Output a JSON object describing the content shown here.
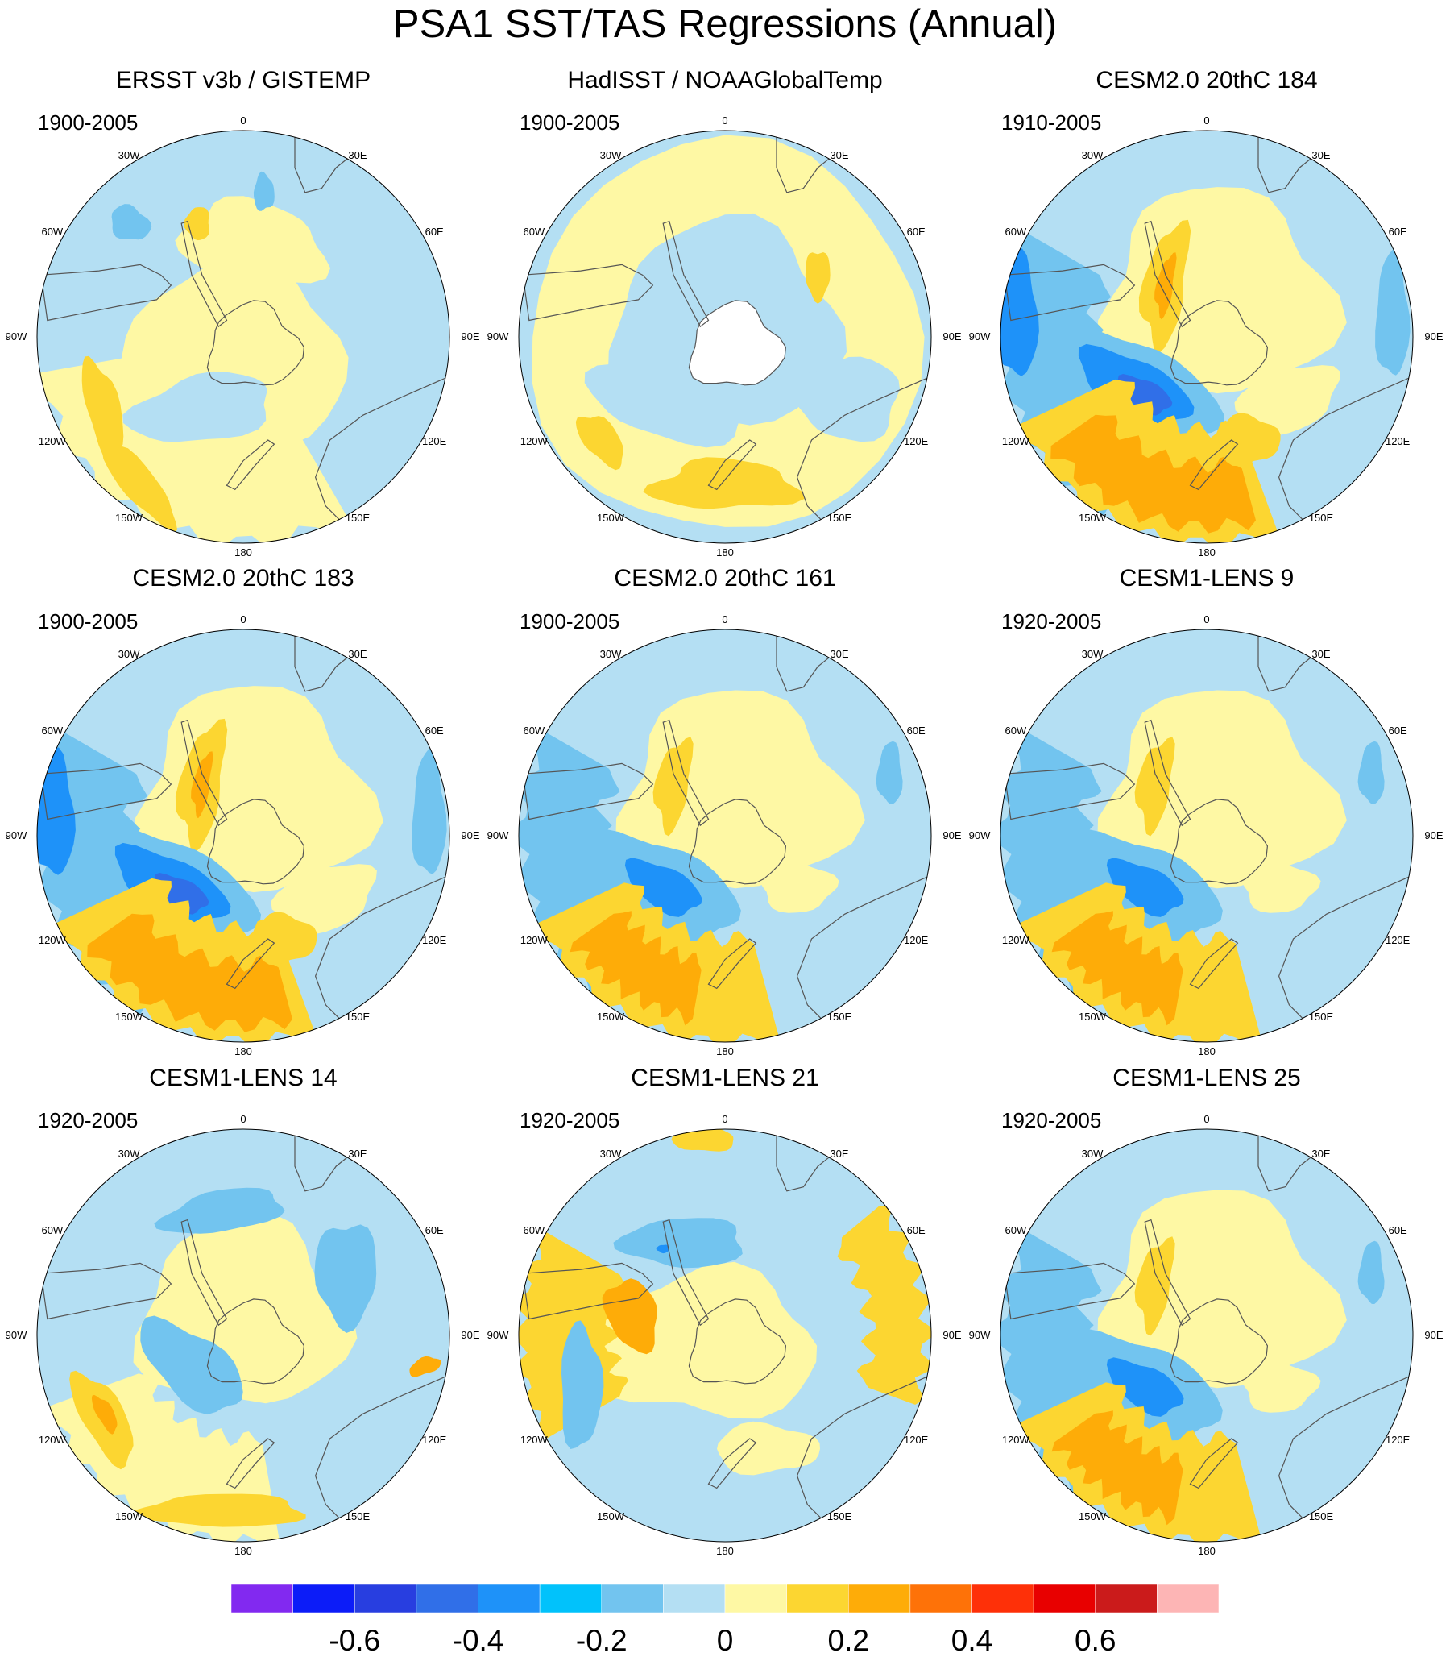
{
  "title": "PSA1 SST/TAS Regressions (Annual)",
  "lon_labels": [
    "0",
    "30E",
    "60E",
    "90E",
    "120E",
    "150E",
    "180",
    "150W",
    "120W",
    "90W",
    "60W",
    "30W"
  ],
  "panels": [
    {
      "title": "ERSST v3b / GISTEMP",
      "period": "1900-2005",
      "pattern": "weak-obs"
    },
    {
      "title": "HadISST / NOAAGlobalTemp",
      "period": "1900-2005",
      "pattern": "weak-obs-masked"
    },
    {
      "title": "CESM2.0 20thC 184",
      "period": "1910-2005",
      "pattern": "strong-dipole"
    },
    {
      "title": "CESM2.0 20thC 183",
      "period": "1900-2005",
      "pattern": "strong-dipole"
    },
    {
      "title": "CESM2.0 20thC 161",
      "period": "1900-2005",
      "pattern": "moderate-dipole"
    },
    {
      "title": "CESM1-LENS 9",
      "period": "1920-2005",
      "pattern": "moderate-dipole"
    },
    {
      "title": "CESM1-LENS 14",
      "period": "1920-2005",
      "pattern": "weak-dipole"
    },
    {
      "title": "CESM1-LENS 21",
      "period": "1920-2005",
      "pattern": "reversed-dipole"
    },
    {
      "title": "CESM1-LENS 25",
      "period": "1920-2005",
      "pattern": "moderate-dipole"
    }
  ],
  "colorbar": {
    "colors": [
      "#8229f0",
      "#0c1cf8",
      "#283ee0",
      "#306fe8",
      "#1e92f9",
      "#01c2fb",
      "#72c4ef",
      "#b4dff3",
      "#fef8a4",
      "#fcd631",
      "#feac08",
      "#fe7208",
      "#fe3008",
      "#e80000",
      "#cb1b1b",
      "#fdb5b5"
    ],
    "tick_labels": [
      "-0.6",
      "-0.4",
      "-0.2",
      "0",
      "0.2",
      "0.4",
      "0.6"
    ],
    "tick_values": [
      -0.6,
      -0.4,
      -0.2,
      0,
      0.2,
      0.4,
      0.6
    ],
    "levels": [
      -0.7,
      -0.6,
      -0.5,
      -0.4,
      -0.3,
      -0.2,
      -0.1,
      0,
      0.1,
      0.2,
      0.3,
      0.4,
      0.5,
      0.6,
      0.7
    ]
  }
}
